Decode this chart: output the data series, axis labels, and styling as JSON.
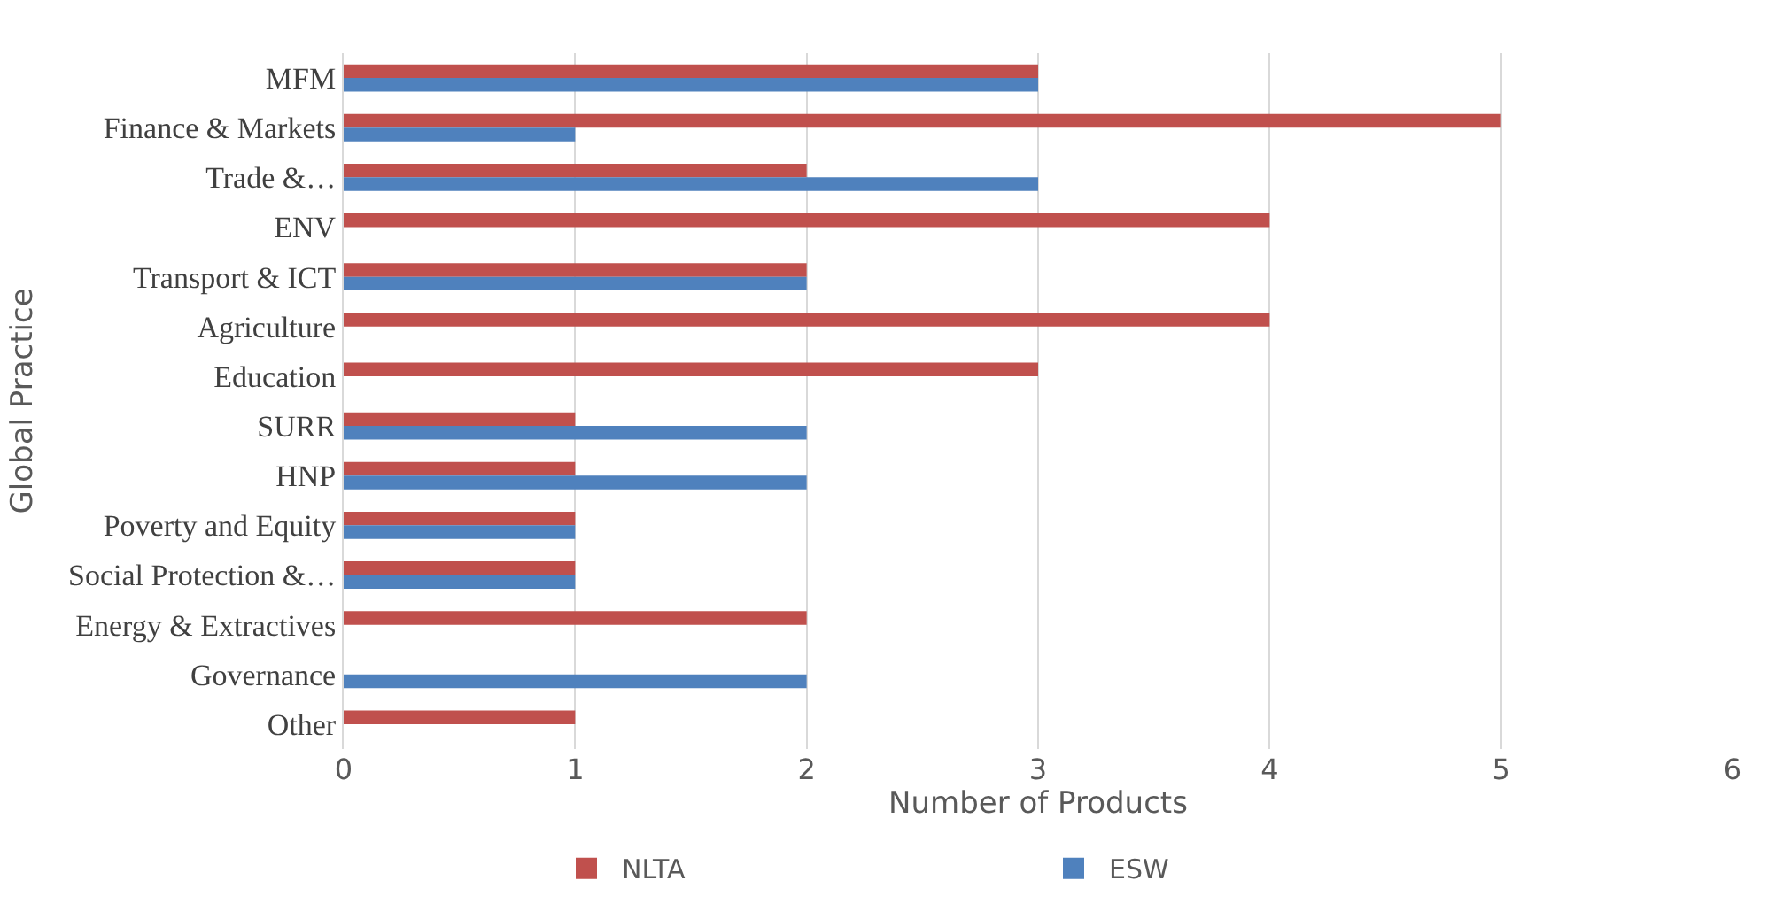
{
  "chart_data": {
    "type": "bar",
    "orientation": "horizontal",
    "xlabel": "Number of Products",
    "ylabel": "Global Practice",
    "categories": [
      "MFM",
      "Finance & Markets",
      "Trade &…",
      "ENV",
      "Transport & ICT",
      "Agriculture",
      "Education",
      "SURR",
      "HNP",
      "Poverty and Equity",
      "Social Protection &…",
      "Energy & Extractives",
      "Governance",
      "Other"
    ],
    "series": [
      {
        "name": "NLTA",
        "color": "#c0504d",
        "values": [
          3,
          5,
          2,
          4,
          2,
          4,
          3,
          1,
          1,
          1,
          1,
          2,
          null,
          1
        ]
      },
      {
        "name": "ESW",
        "color": "#4f81bd",
        "values": [
          3,
          1,
          3,
          null,
          2,
          null,
          null,
          2,
          2,
          1,
          1,
          null,
          2,
          null
        ]
      }
    ],
    "xlim": [
      0,
      6
    ],
    "xticks": [
      0,
      1,
      2,
      3,
      4,
      5,
      6
    ],
    "grid": "x",
    "legend": "bottom"
  }
}
